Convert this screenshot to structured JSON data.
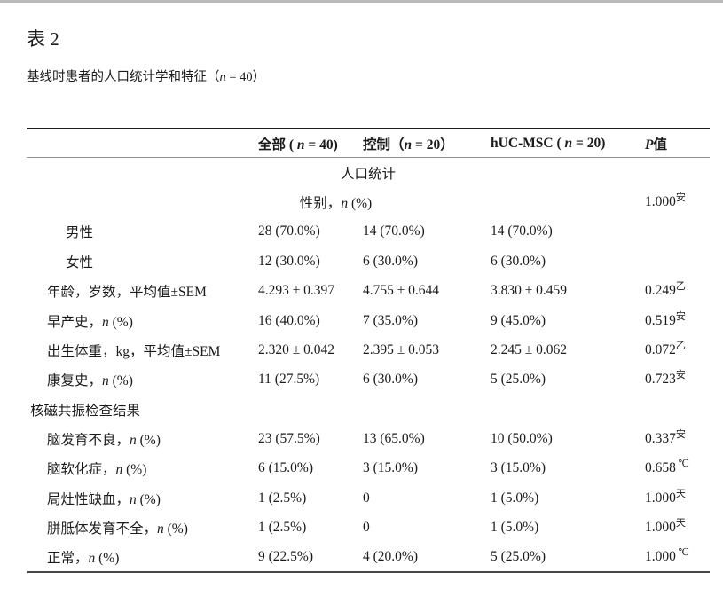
{
  "page": {
    "title": "表 2",
    "subtitle": "基线时患者的人口统计学和特征（n = 40）"
  },
  "table": {
    "columns": [
      "",
      "全部 ( n = 40)",
      "控制（n = 20）",
      "hUC-MSC ( n = 20)",
      "P值"
    ],
    "rows": [
      {
        "type": "section-center",
        "label": "人口统计"
      },
      {
        "type": "span4",
        "label": "性别，n (%)",
        "p": "1.000",
        "p_sup": "安"
      },
      {
        "type": "item",
        "indent": 2,
        "label": "男性",
        "total": "28 (70.0%)",
        "control": "14 (70.0%)",
        "hucmsc": "14 (70.0%)",
        "p": "",
        "p_sup": ""
      },
      {
        "type": "item",
        "indent": 2,
        "label": "女性",
        "total": "12 (30.0%)",
        "control": "6 (30.0%)",
        "hucmsc": "6 (30.0%)",
        "p": "",
        "p_sup": ""
      },
      {
        "type": "item",
        "indent": 1,
        "label": "年龄，岁数，平均值±SEM",
        "total": "4.293 ± 0.397",
        "control": "4.755 ± 0.644",
        "hucmsc": "3.830 ± 0.459",
        "p": "0.249",
        "p_sup": "乙"
      },
      {
        "type": "item",
        "indent": 1,
        "label": "早产史，n (%)",
        "total": "16 (40.0%)",
        "control": "7 (35.0%)",
        "hucmsc": "9 (45.0%)",
        "p": "0.519",
        "p_sup": "安"
      },
      {
        "type": "item",
        "indent": 1,
        "label": "出生体重，kg，平均值±SEM",
        "total": "2.320 ± 0.042",
        "control": "2.395 ± 0.053",
        "hucmsc": "2.245 ± 0.062",
        "p": "0.072",
        "p_sup": "乙"
      },
      {
        "type": "item",
        "indent": 1,
        "label": "康复史，n (%)",
        "total": "11 (27.5%)",
        "control": "6 (30.0%)",
        "hucmsc": "5 (25.0%)",
        "p": "0.723",
        "p_sup": "安"
      },
      {
        "type": "section-left",
        "label": "核磁共振检查结果"
      },
      {
        "type": "item",
        "indent": 1,
        "label": "脑发育不良，n (%)",
        "total": "23 (57.5%)",
        "control": "13 (65.0%)",
        "hucmsc": "10 (50.0%)",
        "p": "0.337",
        "p_sup": "安"
      },
      {
        "type": "item",
        "indent": 1,
        "label": "脑软化症，n (%)",
        "total": "6 (15.0%)",
        "control": "3 (15.0%)",
        "hucmsc": "3 (15.0%)",
        "p": "0.658",
        "p_sup": " ℃"
      },
      {
        "type": "item",
        "indent": 1,
        "label": "局灶性缺血，n (%)",
        "total": "1 (2.5%)",
        "control": "0",
        "hucmsc": "1 (5.0%)",
        "p": "1.000",
        "p_sup": "天"
      },
      {
        "type": "item",
        "indent": 1,
        "label": "胼胝体发育不全，n (%)",
        "total": "1 (2.5%)",
        "control": "0",
        "hucmsc": "1 (5.0%)",
        "p": "1.000",
        "p_sup": "天"
      },
      {
        "type": "item",
        "indent": 1,
        "label": "正常，n (%)",
        "total": "9 (22.5%)",
        "control": "4 (20.0%)",
        "hucmsc": "5 (25.0%)",
        "p": "1.000",
        "p_sup": " ℃"
      }
    ]
  }
}
